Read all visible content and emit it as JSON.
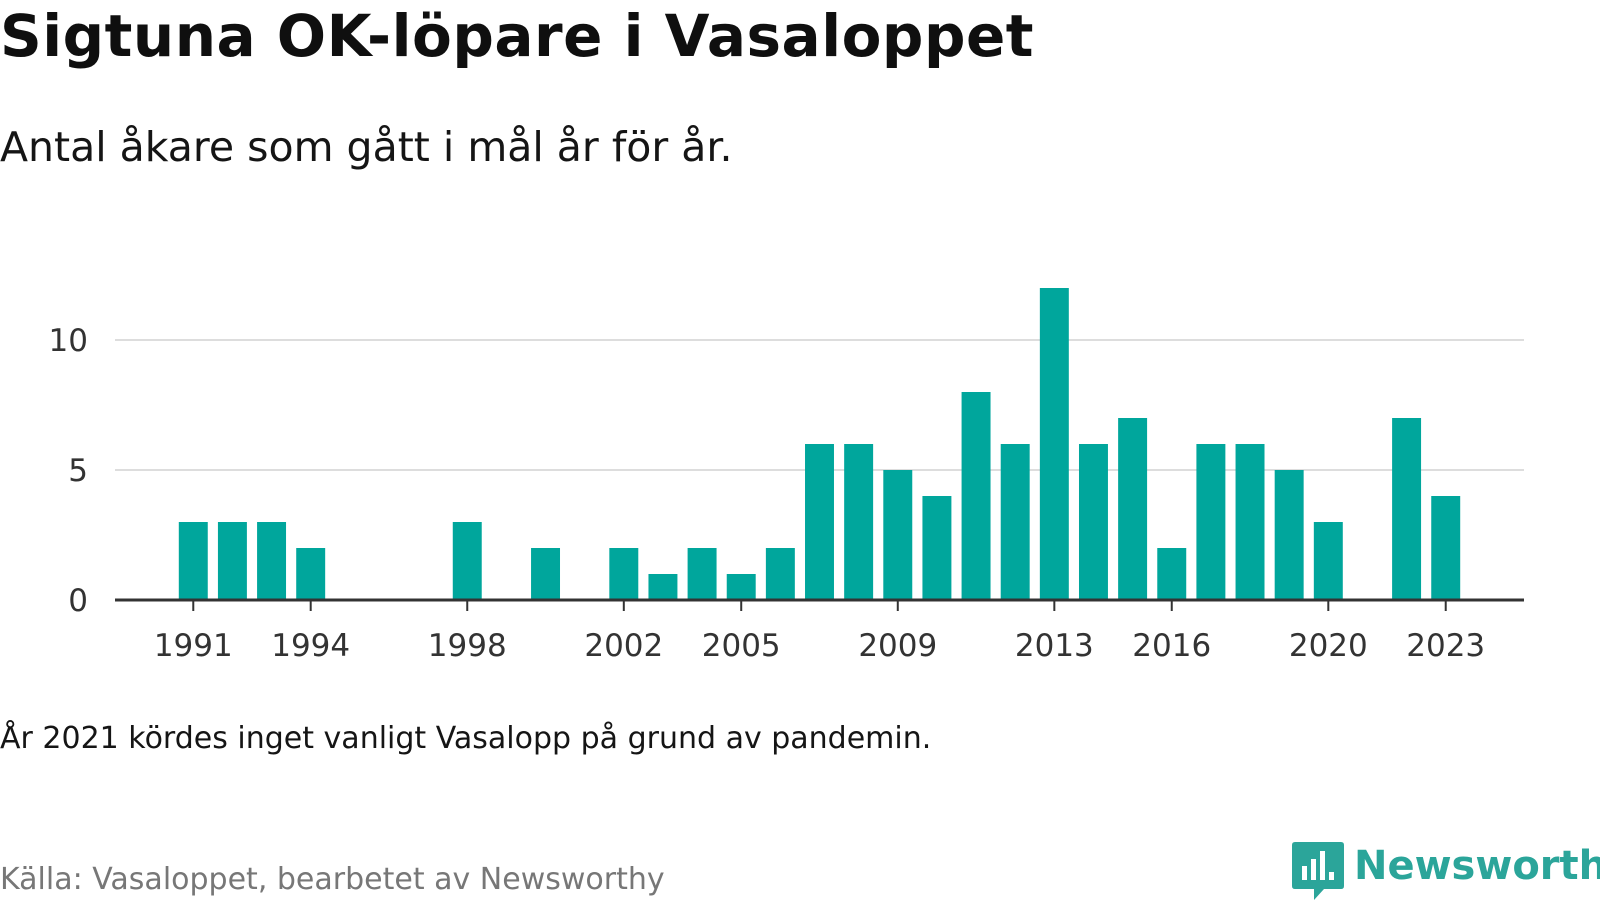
{
  "title": "Sigtuna OK-löpare i Vasaloppet",
  "subtitle": "Antal åkare som gått i mål år för år.",
  "note": "År 2021 kördes inget vanligt Vasalopp på grund av pandemin.",
  "source": "Källa: Vasaloppet, bearbetet av Newsworthy",
  "brand": {
    "name": "Newsworthy",
    "icon": "newsworthy-chart-logo-icon",
    "color": "#2ba59a"
  },
  "colors": {
    "bar": "#00a69c",
    "grid": "#dddddd",
    "axis": "#333333",
    "tick_text": "#333333"
  },
  "chart_data": {
    "type": "bar",
    "x": [
      1991,
      1992,
      1993,
      1994,
      1998,
      2000,
      2002,
      2003,
      2004,
      2005,
      2006,
      2007,
      2008,
      2009,
      2010,
      2011,
      2012,
      2013,
      2014,
      2015,
      2016,
      2017,
      2018,
      2019,
      2020,
      2022,
      2023
    ],
    "values": [
      3,
      3,
      3,
      2,
      3,
      2,
      2,
      1,
      2,
      1,
      2,
      6,
      6,
      5,
      4,
      8,
      6,
      12,
      6,
      7,
      2,
      6,
      6,
      5,
      3,
      7,
      4
    ],
    "xlim": [
      1989,
      2025
    ],
    "ylim": [
      0,
      12
    ],
    "yticks": [
      0,
      5,
      10
    ],
    "xticks": [
      1991,
      1994,
      1998,
      2002,
      2005,
      2009,
      2013,
      2016,
      2020,
      2023
    ],
    "xlabel": "",
    "ylabel": "",
    "grid": true,
    "legend": false
  }
}
